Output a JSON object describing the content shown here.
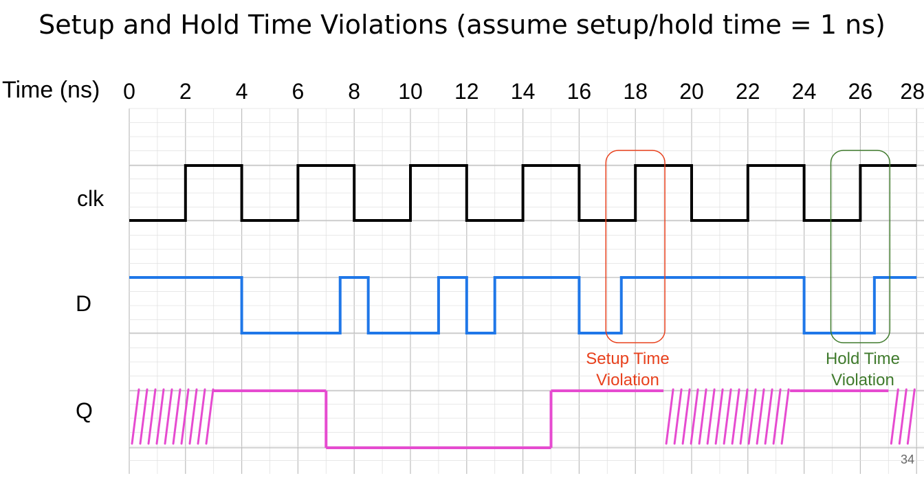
{
  "title": "Setup and Hold Time Violations (assume setup/hold time = 1 ns)",
  "axis": {
    "label": "Time (ns)",
    "ticks": [
      "0",
      "2",
      "4",
      "6",
      "8",
      "10",
      "12",
      "14",
      "16",
      "18",
      "20",
      "22",
      "24",
      "26",
      "28"
    ]
  },
  "signals": {
    "clk": {
      "label": "clk",
      "color": "#000000",
      "transitions": [
        0,
        2,
        4,
        6,
        8,
        10,
        12,
        14,
        16,
        18,
        20,
        22,
        24,
        26
      ],
      "levels": [
        0,
        1,
        0,
        1,
        0,
        1,
        0,
        1,
        0,
        1,
        0,
        1,
        0,
        1
      ]
    },
    "d": {
      "label": "D",
      "color": "#1f77e8",
      "transitions": [
        0,
        4,
        7.5,
        8.5,
        11,
        12,
        13,
        16,
        17.5,
        24,
        26.5
      ],
      "levels": [
        1,
        0,
        1,
        0,
        1,
        0,
        1,
        0,
        1,
        0,
        1
      ]
    },
    "q": {
      "label": "Q",
      "color": "#e64bd0",
      "segments": [
        {
          "from": 0,
          "to": 3,
          "level": "X"
        },
        {
          "from": 3,
          "to": 7,
          "level": 1
        },
        {
          "from": 7,
          "to": 15,
          "level": 0
        },
        {
          "from": 15,
          "to": 19,
          "level": 1
        },
        {
          "from": 19,
          "to": 23.5,
          "level": "X"
        },
        {
          "from": 23.5,
          "to": 27,
          "level": 1
        },
        {
          "from": 27,
          "to": 28,
          "level": "X"
        }
      ]
    }
  },
  "annotations": {
    "setup": {
      "line1": "Setup Time",
      "line2": "Violation",
      "color": "#e8401c",
      "from": 17,
      "to": 19
    },
    "hold": {
      "line1": "Hold Time",
      "line2": "Violation",
      "color": "#3f7a2c",
      "from": 25,
      "to": 27
    }
  },
  "page_number": "34"
}
